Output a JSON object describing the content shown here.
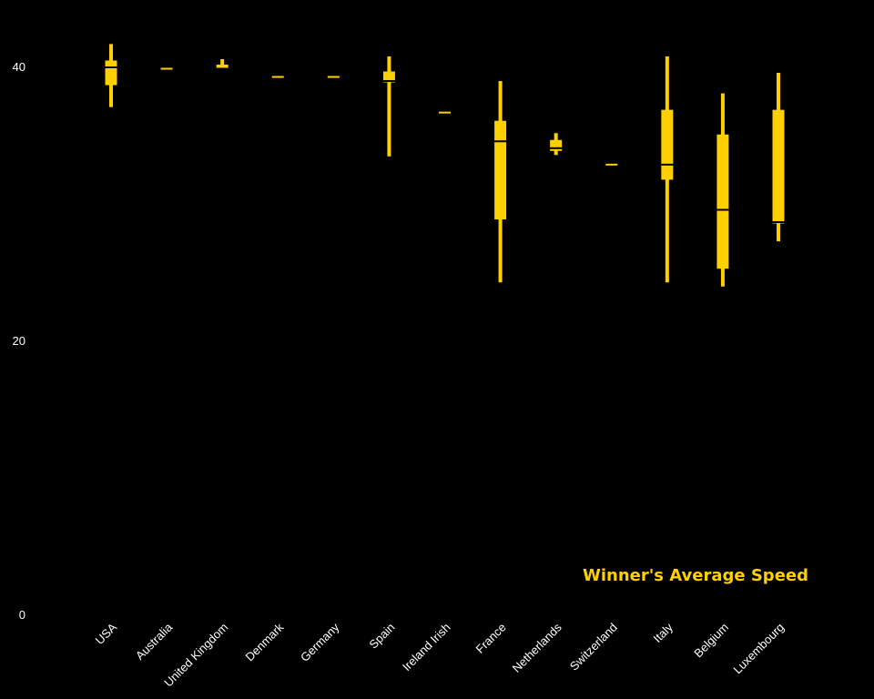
{
  "chart_data": {
    "type": "boxplot",
    "title": "Winner's Average Speed",
    "xlabel": "",
    "ylabel": "",
    "ylim": [
      0,
      40
    ],
    "yticks": [
      0,
      20,
      40
    ],
    "grid": false,
    "color": "#FFD000",
    "background": "#000000",
    "categories": [
      "USA",
      "Australia",
      "United Kingdom",
      "Denmark",
      "Germany",
      "Spain",
      "Ireland Irish",
      "France",
      "Netherlands",
      "Switzerland",
      "Italy",
      "Belgium",
      "Luxembourg"
    ],
    "boxes": [
      {
        "category": "USA",
        "whisker_low": 37.1,
        "q1": 38.7,
        "median": 40.0,
        "q3": 40.5,
        "whisker_high": 41.7
      },
      {
        "category": "Australia",
        "whisker_low": 39.9,
        "q1": 39.9,
        "median": 39.9,
        "q3": 39.9,
        "whisker_high": 39.9
      },
      {
        "category": "United Kingdom",
        "whisker_low": 39.9,
        "q1": 39.9,
        "median": 39.9,
        "q3": 40.2,
        "whisker_high": 40.6
      },
      {
        "category": "Denmark",
        "whisker_low": 39.3,
        "q1": 39.3,
        "median": 39.3,
        "q3": 39.3,
        "whisker_high": 39.3
      },
      {
        "category": "Germany",
        "whisker_low": 39.3,
        "q1": 39.3,
        "median": 39.3,
        "q3": 39.3,
        "whisker_high": 39.3
      },
      {
        "category": "Spain",
        "whisker_low": 33.5,
        "q1": 38.9,
        "median": 39.0,
        "q3": 39.7,
        "whisker_high": 40.8
      },
      {
        "category": "Ireland Irish",
        "whisker_low": 36.7,
        "q1": 36.7,
        "median": 36.7,
        "q3": 36.7,
        "whisker_high": 36.7
      },
      {
        "category": "France",
        "whisker_low": 24.3,
        "q1": 28.9,
        "median": 34.6,
        "q3": 36.1,
        "whisker_high": 39.0
      },
      {
        "category": "Netherlands",
        "whisker_low": 33.6,
        "q1": 33.9,
        "median": 34.1,
        "q3": 34.7,
        "whisker_high": 35.2
      },
      {
        "category": "Switzerland",
        "whisker_low": 32.9,
        "q1": 32.9,
        "median": 32.9,
        "q3": 32.9,
        "whisker_high": 32.9
      },
      {
        "category": "Italy",
        "whisker_low": 24.3,
        "q1": 31.8,
        "median": 32.9,
        "q3": 36.9,
        "whisker_high": 40.8
      },
      {
        "category": "Belgium",
        "whisker_low": 24.0,
        "q1": 25.3,
        "median": 29.6,
        "q3": 35.1,
        "whisker_high": 38.1
      },
      {
        "category": "Luxembourg",
        "whisker_low": 27.3,
        "q1": 28.6,
        "median": 28.7,
        "q3": 36.9,
        "whisker_high": 39.6
      }
    ]
  }
}
